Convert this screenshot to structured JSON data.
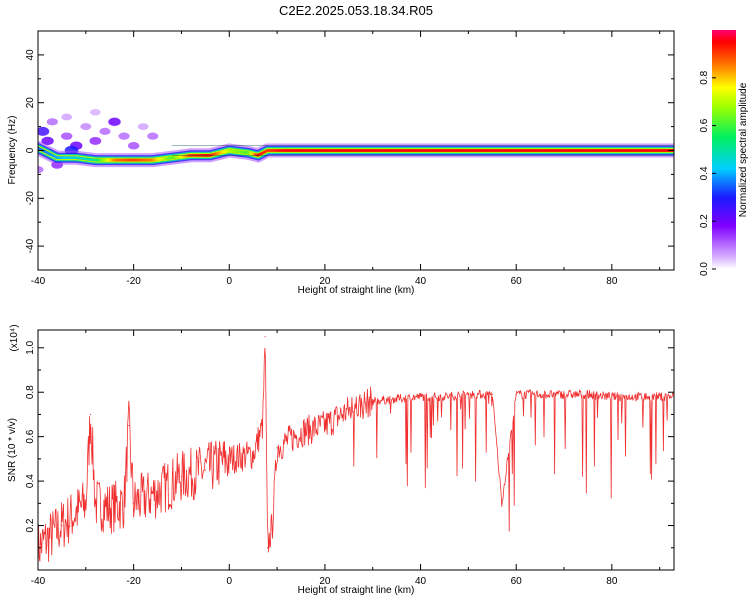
{
  "title": "C2E2.2025.053.18.34.R05",
  "chart_data": [
    {
      "type": "heatmap",
      "xlabel": "Height of straight line (km)",
      "ylabel": "Frequency (Hz)",
      "xlim": [
        -40,
        93
      ],
      "ylim": [
        -50,
        50
      ],
      "xticks": [
        "-40",
        "-20",
        "0",
        "20",
        "40",
        "60",
        "80"
      ],
      "yticks": [
        "40",
        "20",
        "0",
        "-20",
        "-40"
      ],
      "colorbar": {
        "label": "Normalized spectral amplitude",
        "range": [
          0,
          1
        ],
        "ticks": [
          "0.0",
          "0.2",
          "0.4",
          "0.6",
          "0.8"
        ],
        "placement": "right"
      },
      "ridge": {
        "x": [
          -40,
          -36,
          -32,
          -28,
          -24,
          -20,
          -16,
          -12,
          -8,
          -4,
          0,
          4,
          6,
          8,
          12,
          16,
          20,
          25,
          30,
          40,
          60,
          80,
          93
        ],
        "y": [
          1,
          -3,
          -3,
          -4,
          -4,
          -4,
          -4,
          -3,
          -2,
          -2,
          0,
          -1,
          -2,
          0,
          0,
          0,
          0,
          0,
          0,
          0,
          0,
          0,
          0
        ],
        "amplitude": [
          0.35,
          0.4,
          0.45,
          0.5,
          0.85,
          0.9,
          0.85,
          0.6,
          0.9,
          0.95,
          0.7,
          0.6,
          0.95,
          0.9,
          0.95,
          0.95,
          0.95,
          0.95,
          0.95,
          0.95,
          0.95,
          0.95,
          0.95
        ]
      },
      "scatter_blobs": [
        {
          "x": -39,
          "y": 8,
          "a": 0.25
        },
        {
          "x": -38,
          "y": 4,
          "a": 0.2
        },
        {
          "x": -37,
          "y": 12,
          "a": 0.1
        },
        {
          "x": -36,
          "y": -6,
          "a": 0.15
        },
        {
          "x": -34,
          "y": 6,
          "a": 0.12
        },
        {
          "x": -32,
          "y": 2,
          "a": 0.2
        },
        {
          "x": -30,
          "y": 10,
          "a": 0.08
        },
        {
          "x": -28,
          "y": 4,
          "a": 0.15
        },
        {
          "x": -26,
          "y": 8,
          "a": 0.1
        },
        {
          "x": -24,
          "y": 12,
          "a": 0.2
        },
        {
          "x": -22,
          "y": 6,
          "a": 0.1
        },
        {
          "x": -20,
          "y": 2,
          "a": 0.12
        },
        {
          "x": -18,
          "y": 10,
          "a": 0.06
        },
        {
          "x": -16,
          "y": 6,
          "a": 0.1
        },
        {
          "x": -34,
          "y": 14,
          "a": 0.06
        },
        {
          "x": -28,
          "y": 16,
          "a": 0.05
        },
        {
          "x": -40,
          "y": -8,
          "a": 0.1
        },
        {
          "x": -33,
          "y": 0,
          "a": 0.3
        }
      ]
    },
    {
      "type": "line",
      "xlabel": "Height of straight line (km)",
      "ylabel": "SNR (10 * v/v)",
      "y_multiplier": "(x10⁴)",
      "xlim": [
        -40,
        93
      ],
      "ylim": [
        0.0,
        1.08
      ],
      "xticks": [
        "-40",
        "-20",
        "0",
        "20",
        "40",
        "60",
        "80"
      ],
      "yticks": [
        "1.0",
        "0.8",
        "0.6",
        "0.4",
        "0.2"
      ],
      "color": "#f03030",
      "series": [
        {
          "x": [
            -40,
            -35,
            -30,
            -29,
            -28,
            -25,
            -22,
            -21,
            -20,
            -15,
            -10,
            -5,
            0,
            5,
            7,
            7.5,
            8,
            9,
            10,
            15,
            20,
            25,
            30,
            35,
            40,
            45,
            50,
            55,
            57,
            60,
            65,
            70,
            75,
            80,
            85,
            93
          ],
          "y": [
            0.1,
            0.2,
            0.3,
            0.7,
            0.3,
            0.28,
            0.3,
            0.65,
            0.3,
            0.35,
            0.42,
            0.45,
            0.5,
            0.52,
            0.65,
            1.05,
            0.1,
            0.2,
            0.55,
            0.62,
            0.65,
            0.72,
            0.76,
            0.77,
            0.78,
            0.78,
            0.79,
            0.79,
            0.3,
            0.79,
            0.79,
            0.79,
            0.79,
            0.78,
            0.78,
            0.78
          ]
        }
      ]
    }
  ]
}
